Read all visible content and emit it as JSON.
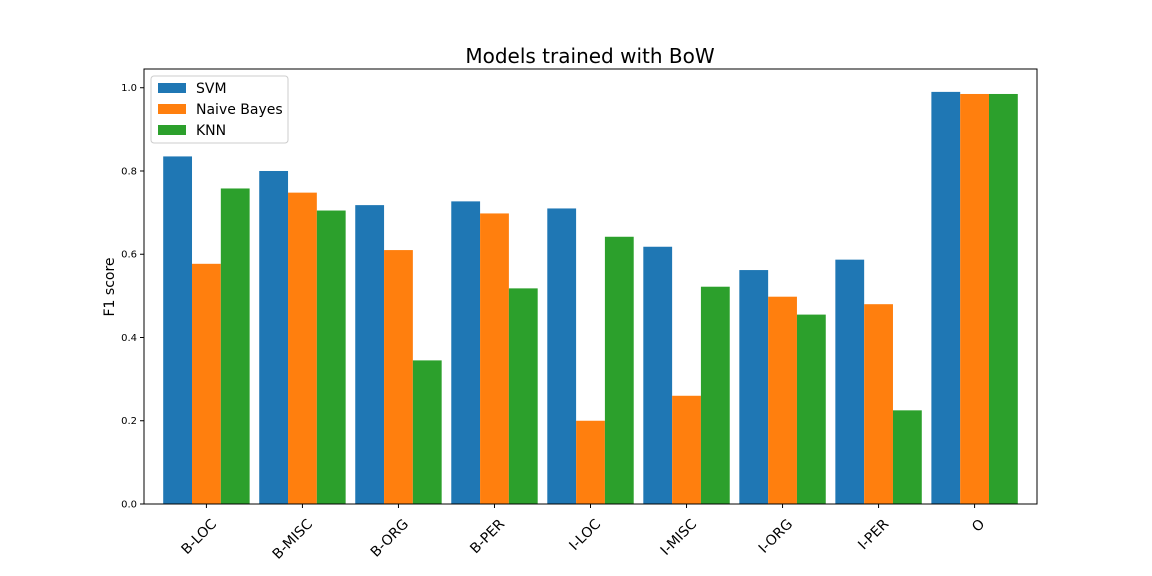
{
  "chart_data": {
    "type": "bar",
    "title": "Models trained with BoW",
    "xlabel": "",
    "ylabel": "F1 score",
    "categories": [
      "B-LOC",
      "B-MISC",
      "B-ORG",
      "B-PER",
      "I-LOC",
      "I-MISC",
      "I-ORG",
      "I-PER",
      "O"
    ],
    "series": [
      {
        "name": "SVM",
        "color": "#1f77b4",
        "values": [
          0.835,
          0.8,
          0.718,
          0.727,
          0.71,
          0.618,
          0.562,
          0.587,
          0.99
        ]
      },
      {
        "name": "Naive Bayes",
        "color": "#ff7f0e",
        "values": [
          0.577,
          0.748,
          0.61,
          0.698,
          0.2,
          0.26,
          0.498,
          0.48,
          0.985
        ]
      },
      {
        "name": "KNN",
        "color": "#2ca02c",
        "values": [
          0.758,
          0.705,
          0.345,
          0.518,
          0.642,
          0.522,
          0.455,
          0.225,
          0.985
        ]
      }
    ],
    "ylim": [
      0,
      1.045
    ],
    "yticks": [
      "0.0",
      "0.2",
      "0.4",
      "0.6",
      "0.8",
      "1.0"
    ],
    "grid": false,
    "legend_position": "top-left",
    "xtick_rotation": 45
  }
}
